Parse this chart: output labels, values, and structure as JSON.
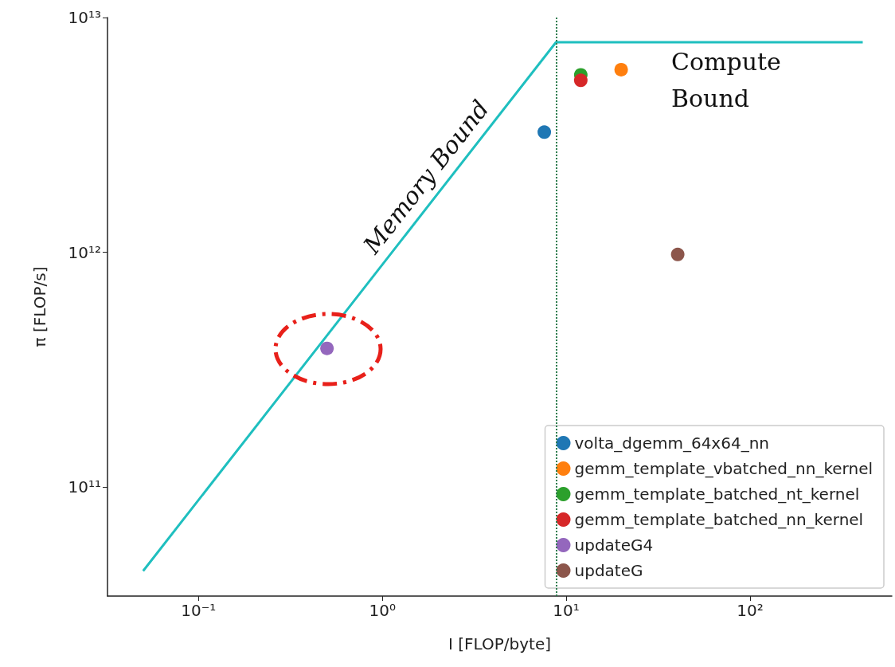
{
  "chart_data": {
    "type": "scatter",
    "xlabel": "I [FLOP/byte]",
    "ylabel": "π [FLOP/s]",
    "log": "xy",
    "xlim": [
      0.032,
      590
    ],
    "ylim": [
      34400000000.0,
      10000000000000.0
    ],
    "xticks": [
      {
        "value": 0.1,
        "label": "10⁻¹"
      },
      {
        "value": 1,
        "label": "10⁰"
      },
      {
        "value": 10,
        "label": "10¹"
      },
      {
        "value": 100,
        "label": "10²"
      }
    ],
    "yticks": [
      {
        "value": 100000000000.0,
        "label": "10¹¹"
      },
      {
        "value": 1000000000000.0,
        "label": "10¹²"
      },
      {
        "value": 10000000000000.0,
        "label": "10¹³"
      }
    ],
    "grid": false,
    "legend": "bottom right",
    "marker": "circle",
    "series": [
      {
        "type": "line",
        "marker": "none",
        "color": "#1fbfbf",
        "x": [
          0.05,
          8.8,
          410
        ],
        "values": [
          44000000000.0,
          7850000000000.0,
          7850000000000.0
        ]
      },
      {
        "name": "volta_dgemm_64x64_nn",
        "color": "#1f77b4",
        "x": [
          7.6
        ],
        "values": [
          3250000000000.0
        ]
      },
      {
        "name": "gemm_template_vbatched_nn_kernel",
        "color": "#ff7f0e",
        "x": [
          19.9
        ],
        "values": [
          6000000000000.0
        ]
      },
      {
        "name": "gemm_template_batched_nt_kernel",
        "color": "#2ca02c",
        "x": [
          12.0
        ],
        "values": [
          5700000000000.0
        ]
      },
      {
        "name": "gemm_template_batched_nn_kernel",
        "color": "#d62728",
        "x": [
          12.0
        ],
        "values": [
          5400000000000.0
        ]
      },
      {
        "name": "updateG4",
        "color": "#9467bd",
        "x": [
          0.5
        ],
        "values": [
          390000000000.0
        ]
      },
      {
        "name": "updateG",
        "color": "#8c564b",
        "x": [
          40.4
        ],
        "values": [
          980000000000.0
        ]
      }
    ],
    "ref_lines": [
      {
        "axis": "x",
        "value": 8.8,
        "color": "#2e7d4f",
        "line_style": "dotted"
      }
    ],
    "annotations": [
      "Memory Bound",
      "Compute\nBound"
    ]
  }
}
